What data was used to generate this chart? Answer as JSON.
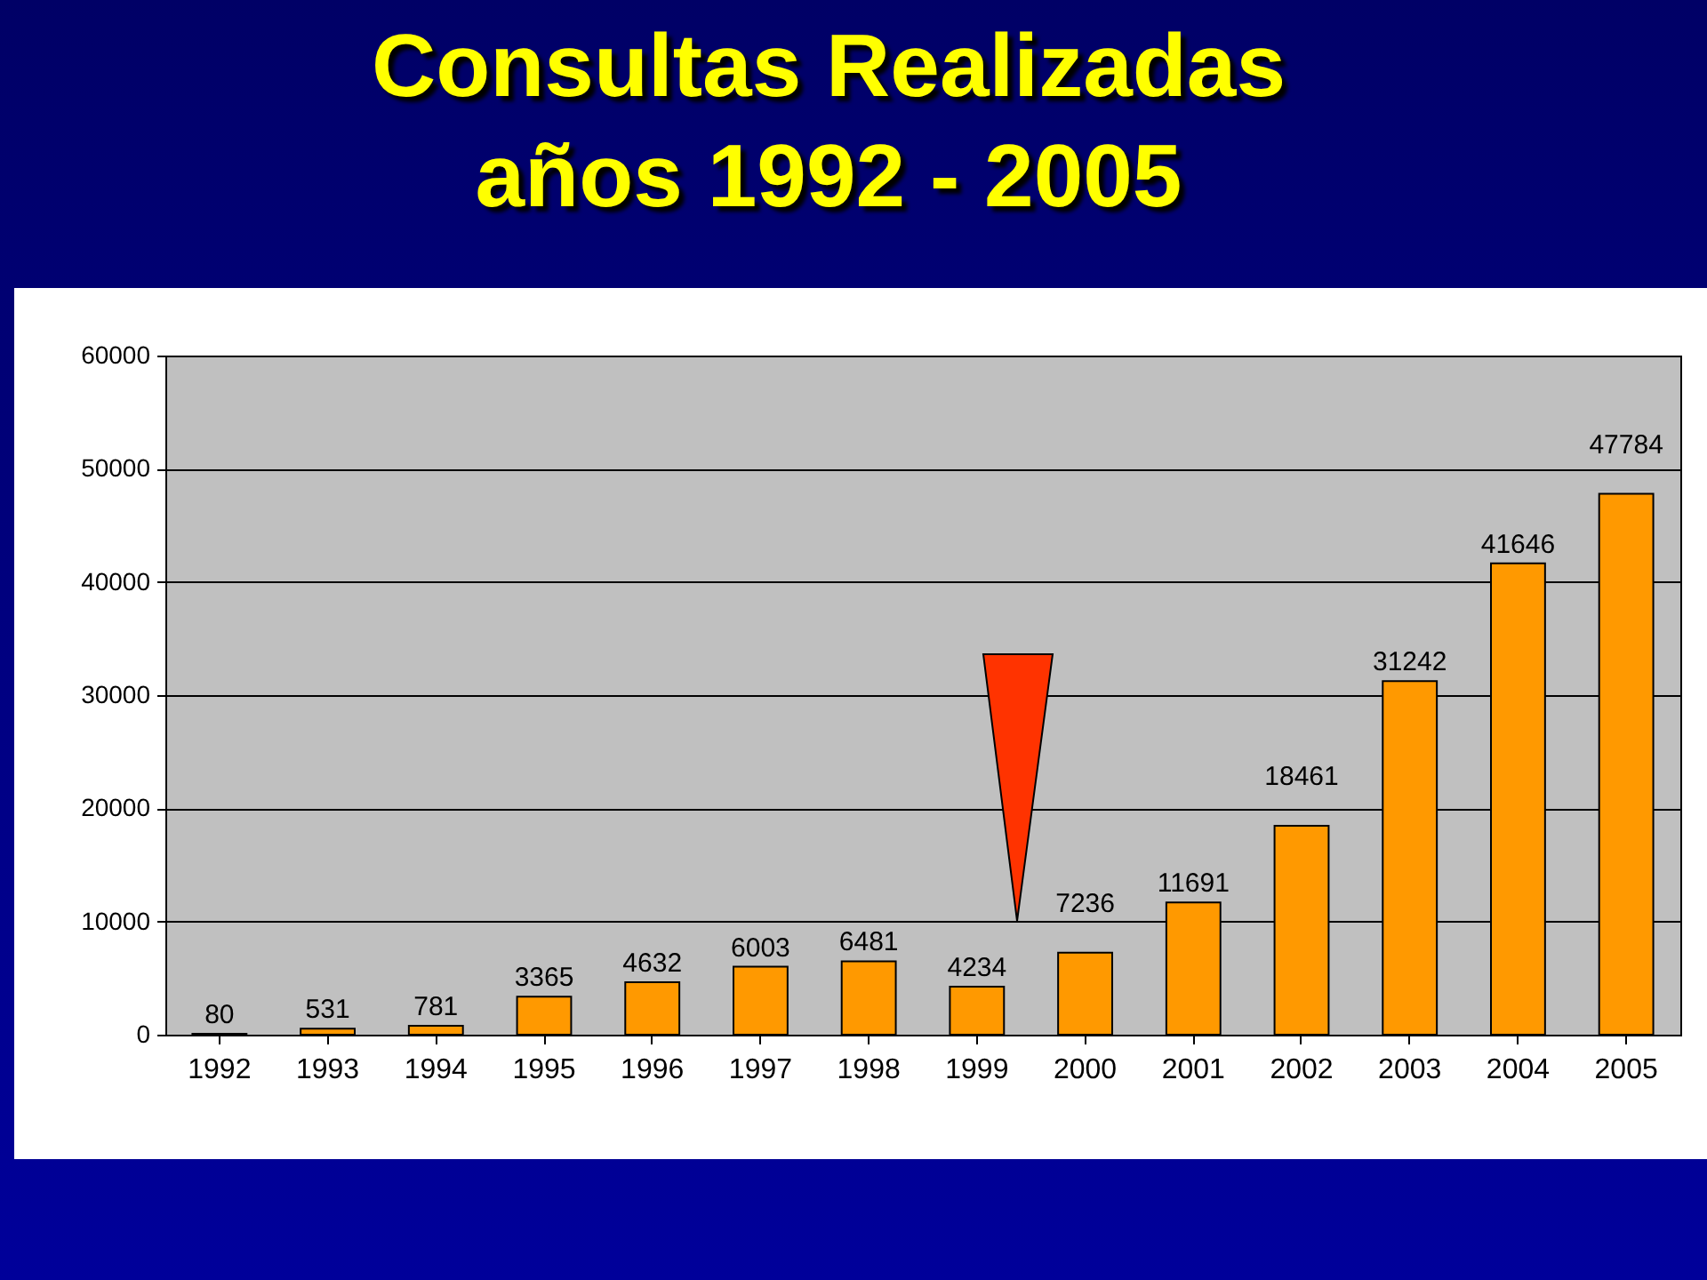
{
  "chart_data": {
    "type": "bar",
    "title": "Consultas Realizadas\naños 1992 - 2005",
    "categories": [
      "1992",
      "1993",
      "1994",
      "1995",
      "1996",
      "1997",
      "1998",
      "1999",
      "2000",
      "2001",
      "2002",
      "2003",
      "2004",
      "2005"
    ],
    "values": [
      80,
      531,
      781,
      3365,
      4632,
      6003,
      6481,
      4234,
      7236,
      11691,
      18461,
      31242,
      41646,
      47784
    ],
    "color": "#ff9900",
    "ylim": [
      0,
      60000
    ],
    "yticks": [
      0,
      10000,
      20000,
      30000,
      40000,
      50000,
      60000
    ],
    "grid": "y",
    "data_labels": true
  }
}
